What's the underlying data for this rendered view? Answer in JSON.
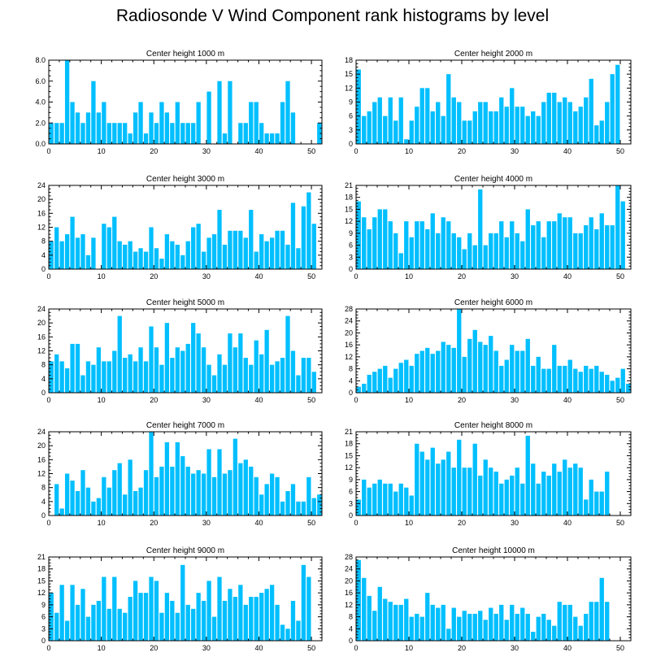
{
  "title": "Radiosonde V Wind Component rank histograms by level",
  "bar_color": "#00bfff",
  "chart_data": [
    {
      "type": "bar",
      "title": "Center height 1000 m",
      "xlabel": "",
      "ylabel": "",
      "xlim": [
        0,
        52
      ],
      "ylim": [
        0,
        8
      ],
      "yticks": [
        "0.0",
        "2.0",
        "4.0",
        "6.0",
        "8.0"
      ],
      "ytick_values": [
        0,
        2,
        4,
        6,
        8
      ],
      "xticks": [
        0,
        10,
        20,
        30,
        40,
        50
      ],
      "values": [
        2,
        2,
        2,
        8,
        4,
        3,
        2,
        3,
        6,
        3,
        4,
        2,
        2,
        2,
        2,
        1,
        3,
        4,
        1,
        3,
        2,
        4,
        3,
        2,
        4,
        2,
        2,
        2,
        4,
        0,
        5,
        0,
        6,
        1,
        6,
        0,
        2,
        2,
        4,
        4,
        2,
        1,
        1,
        1,
        4,
        6,
        3,
        0,
        0,
        0,
        0,
        2
      ]
    },
    {
      "type": "bar",
      "title": "Center height 2000 m",
      "xlabel": "",
      "ylabel": "",
      "xlim": [
        0,
        52
      ],
      "ylim": [
        0,
        18
      ],
      "yticks": [
        "0",
        "3",
        "6",
        "9",
        "12",
        "15",
        "18"
      ],
      "ytick_values": [
        0,
        3,
        6,
        9,
        12,
        15,
        18
      ],
      "xticks": [
        0,
        10,
        20,
        30,
        40,
        50
      ],
      "values": [
        16,
        6,
        7,
        9,
        10,
        6,
        10,
        5,
        10,
        1,
        5,
        8,
        12,
        12,
        7,
        9,
        6,
        15,
        10,
        9,
        5,
        5,
        7,
        9,
        9,
        7,
        7,
        10,
        8,
        12,
        8,
        8,
        6,
        7,
        6,
        9,
        11,
        11,
        9,
        10,
        9,
        7,
        8,
        10,
        14,
        4,
        5,
        9,
        15,
        17,
        0,
        0
      ]
    },
    {
      "type": "bar",
      "title": "Center height 3000 m",
      "xlabel": "",
      "ylabel": "",
      "xlim": [
        0,
        52
      ],
      "ylim": [
        0,
        24
      ],
      "yticks": [
        "0",
        "4",
        "8",
        "12",
        "16",
        "20",
        "24"
      ],
      "ytick_values": [
        0,
        4,
        8,
        12,
        16,
        20,
        24
      ],
      "xticks": [
        0,
        10,
        20,
        30,
        40,
        50
      ],
      "values": [
        8,
        12,
        8,
        10,
        15,
        9,
        10,
        4,
        9,
        0,
        13,
        12,
        15,
        8,
        7,
        8,
        5,
        6,
        5,
        12,
        6,
        3,
        10,
        8,
        7,
        4,
        8,
        12,
        13,
        5,
        9,
        10,
        17,
        7,
        11,
        11,
        11,
        9,
        17,
        5,
        10,
        8,
        9,
        11,
        11,
        7,
        19,
        6,
        18,
        22,
        13,
        0
      ]
    },
    {
      "type": "bar",
      "title": "Center height 4000 m",
      "xlabel": "",
      "ylabel": "",
      "xlim": [
        0,
        52
      ],
      "ylim": [
        0,
        21
      ],
      "yticks": [
        "0",
        "3",
        "6",
        "9",
        "12",
        "15",
        "18",
        "21"
      ],
      "ytick_values": [
        0,
        3,
        6,
        9,
        12,
        15,
        18,
        21
      ],
      "xticks": [
        0,
        10,
        20,
        30,
        40,
        50
      ],
      "values": [
        17,
        13,
        10,
        13,
        15,
        15,
        12,
        9,
        4,
        12,
        8,
        12,
        12,
        10,
        14,
        9,
        13,
        12,
        9,
        8,
        5,
        9,
        6,
        20,
        6,
        9,
        9,
        12,
        8,
        12,
        9,
        7,
        15,
        11,
        12,
        8,
        12,
        12,
        14,
        13,
        13,
        9,
        9,
        11,
        13,
        10,
        14,
        11,
        11,
        21,
        17,
        0
      ]
    },
    {
      "type": "bar",
      "title": "Center height 5000 m",
      "xlabel": "",
      "ylabel": "",
      "xlim": [
        0,
        52
      ],
      "ylim": [
        0,
        24
      ],
      "yticks": [
        "0",
        "4",
        "8",
        "12",
        "16",
        "20",
        "24"
      ],
      "ytick_values": [
        0,
        4,
        8,
        12,
        16,
        20,
        24
      ],
      "xticks": [
        0,
        10,
        20,
        30,
        40,
        50
      ],
      "values": [
        9,
        11,
        9,
        7,
        14,
        14,
        5,
        9,
        8,
        13,
        9,
        9,
        12,
        22,
        10,
        11,
        9,
        13,
        9,
        19,
        13,
        8,
        20,
        10,
        13,
        12,
        14,
        20,
        17,
        13,
        8,
        5,
        11,
        8,
        17,
        13,
        17,
        10,
        8,
        15,
        11,
        18,
        8,
        9,
        10,
        22,
        12,
        5,
        10,
        10,
        6,
        0
      ]
    },
    {
      "type": "bar",
      "title": "Center height 6000 m",
      "xlabel": "",
      "ylabel": "",
      "xlim": [
        0,
        52
      ],
      "ylim": [
        0,
        28
      ],
      "yticks": [
        "0",
        "4",
        "8",
        "12",
        "16",
        "20",
        "24",
        "28"
      ],
      "ytick_values": [
        0,
        4,
        8,
        12,
        16,
        20,
        24,
        28
      ],
      "xticks": [
        0,
        10,
        20,
        30,
        40,
        50
      ],
      "values": [
        2,
        3,
        6,
        7,
        8,
        9,
        5,
        8,
        10,
        11,
        9,
        13,
        14,
        15,
        13,
        14,
        17,
        16,
        15,
        28,
        12,
        18,
        21,
        17,
        16,
        19,
        14,
        9,
        11,
        16,
        14,
        14,
        18,
        9,
        12,
        8,
        8,
        16,
        9,
        9,
        11,
        8,
        7,
        9,
        8,
        9,
        7,
        6,
        4,
        5,
        8,
        3
      ]
    },
    {
      "type": "bar",
      "title": "Center height 7000 m",
      "xlabel": "",
      "ylabel": "",
      "xlim": [
        0,
        52
      ],
      "ylim": [
        0,
        24
      ],
      "yticks": [
        "0",
        "4",
        "8",
        "12",
        "16",
        "20",
        "24"
      ],
      "ytick_values": [
        0,
        4,
        8,
        12,
        16,
        20,
        24
      ],
      "xticks": [
        0,
        10,
        20,
        30,
        40,
        50
      ],
      "values": [
        0,
        9,
        2,
        12,
        10,
        7,
        13,
        8,
        4,
        5,
        11,
        8,
        13,
        15,
        6,
        16,
        7,
        8,
        13,
        24,
        11,
        14,
        21,
        14,
        21,
        17,
        14,
        12,
        13,
        12,
        19,
        11,
        19,
        12,
        13,
        22,
        15,
        16,
        14,
        11,
        6,
        9,
        12,
        11,
        4,
        7,
        9,
        4,
        4,
        11,
        5,
        6
      ]
    },
    {
      "type": "bar",
      "title": "Center height 8000 m",
      "xlabel": "",
      "ylabel": "",
      "xlim": [
        0,
        52
      ],
      "ylim": [
        0,
        21
      ],
      "yticks": [
        "0",
        "3",
        "6",
        "9",
        "12",
        "15",
        "18",
        "21"
      ],
      "ytick_values": [
        0,
        3,
        6,
        9,
        12,
        15,
        18,
        21
      ],
      "xticks": [
        0,
        10,
        20,
        30,
        40,
        50
      ],
      "values": [
        4,
        9,
        7,
        8,
        9,
        8,
        8,
        6,
        8,
        7,
        5,
        18,
        16,
        14,
        17,
        13,
        14,
        16,
        12,
        19,
        12,
        12,
        18,
        10,
        14,
        12,
        11,
        8,
        9,
        10,
        12,
        8,
        20,
        13,
        8,
        11,
        10,
        13,
        11,
        14,
        12,
        13,
        12,
        4,
        9,
        6,
        6,
        11,
        0,
        0,
        0,
        0
      ]
    },
    {
      "type": "bar",
      "title": "Center height 9000 m",
      "xlabel": "",
      "ylabel": "",
      "xlim": [
        0,
        52
      ],
      "ylim": [
        0,
        21
      ],
      "yticks": [
        "0",
        "3",
        "6",
        "9",
        "12",
        "15",
        "18",
        "21"
      ],
      "ytick_values": [
        0,
        3,
        6,
        9,
        12,
        15,
        18,
        21
      ],
      "xticks": [
        0,
        10,
        20,
        30,
        40,
        50
      ],
      "values": [
        12,
        7,
        14,
        5,
        14,
        9,
        13,
        6,
        9,
        10,
        16,
        8,
        16,
        8,
        7,
        11,
        15,
        12,
        12,
        16,
        15,
        7,
        12,
        10,
        7,
        19,
        9,
        8,
        12,
        10,
        15,
        6,
        16,
        10,
        13,
        11,
        14,
        9,
        11,
        11,
        12,
        13,
        14,
        9,
        4,
        3,
        10,
        5,
        19,
        16,
        0,
        0
      ]
    },
    {
      "type": "bar",
      "title": "Center height 10000 m",
      "xlabel": "",
      "ylabel": "",
      "xlim": [
        0,
        52
      ],
      "ylim": [
        0,
        28
      ],
      "yticks": [
        "0",
        "4",
        "8",
        "12",
        "16",
        "20",
        "24",
        "28"
      ],
      "ytick_values": [
        0,
        4,
        8,
        12,
        16,
        20,
        24,
        28
      ],
      "xticks": [
        0,
        10,
        20,
        30,
        40,
        50
      ],
      "values": [
        27,
        21,
        15,
        10,
        18,
        14,
        13,
        12,
        12,
        14,
        8,
        9,
        8,
        16,
        12,
        11,
        12,
        4,
        11,
        8,
        10,
        9,
        9,
        10,
        7,
        11,
        9,
        12,
        7,
        12,
        9,
        11,
        9,
        3,
        8,
        9,
        7,
        5,
        13,
        12,
        12,
        8,
        5,
        9,
        13,
        13,
        21,
        13,
        0,
        0,
        0,
        0
      ]
    }
  ]
}
